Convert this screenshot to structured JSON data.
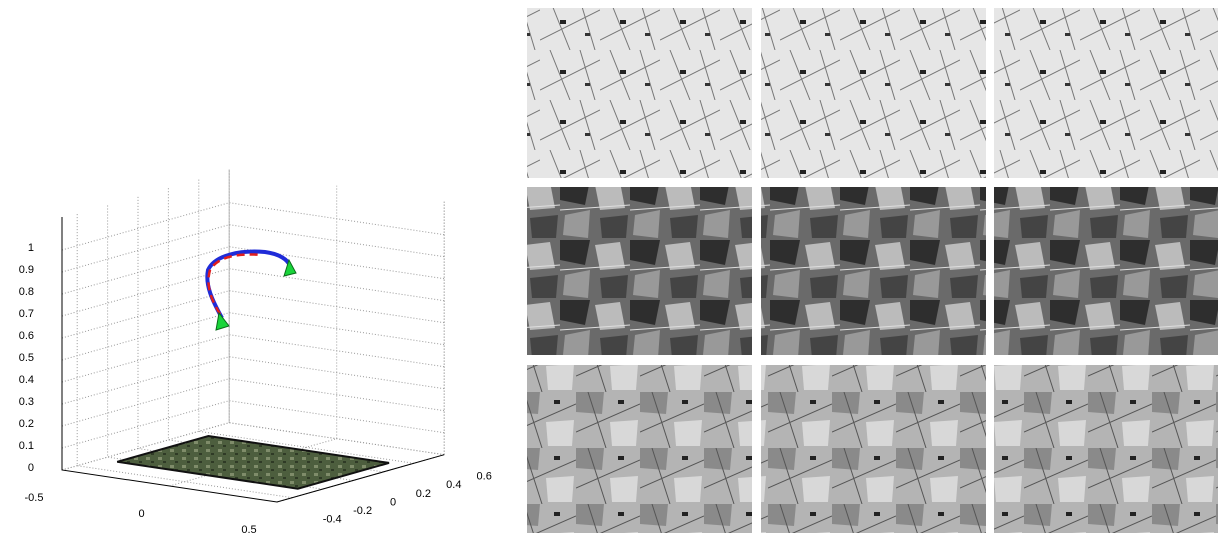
{
  "plot": {
    "xticks": [
      -0.5,
      0,
      0.5
    ],
    "yticks": [
      -0.4,
      -0.2,
      0,
      0.2,
      0.4,
      0.6
    ],
    "zticks": [
      0,
      0.1,
      0.2,
      0.3,
      0.4,
      0.5,
      0.6,
      0.7,
      0.8,
      0.9,
      1
    ]
  }
}
